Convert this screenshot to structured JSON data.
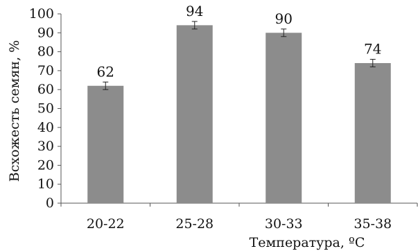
{
  "chart_data": {
    "type": "bar",
    "categories": [
      "20-22",
      "25-28",
      "30-33",
      "35-38"
    ],
    "values": [
      62,
      94,
      90,
      74
    ],
    "error": [
      2,
      2,
      2,
      2
    ],
    "data_labels": [
      "62",
      "94",
      "90",
      "74"
    ],
    "xlabel": "Температура, ºС",
    "ylabel": "Всхожесть семян, %",
    "ylim": [
      0,
      100
    ],
    "yticks": [
      0,
      10,
      20,
      30,
      40,
      50,
      60,
      70,
      80,
      90,
      100
    ],
    "ytick_labels": [
      "0",
      "10",
      "20",
      "30",
      "40",
      "50",
      "60",
      "70",
      "80",
      "90",
      "100"
    ],
    "grid": false,
    "legend": "none",
    "bar_color": "#8c8c8c"
  }
}
